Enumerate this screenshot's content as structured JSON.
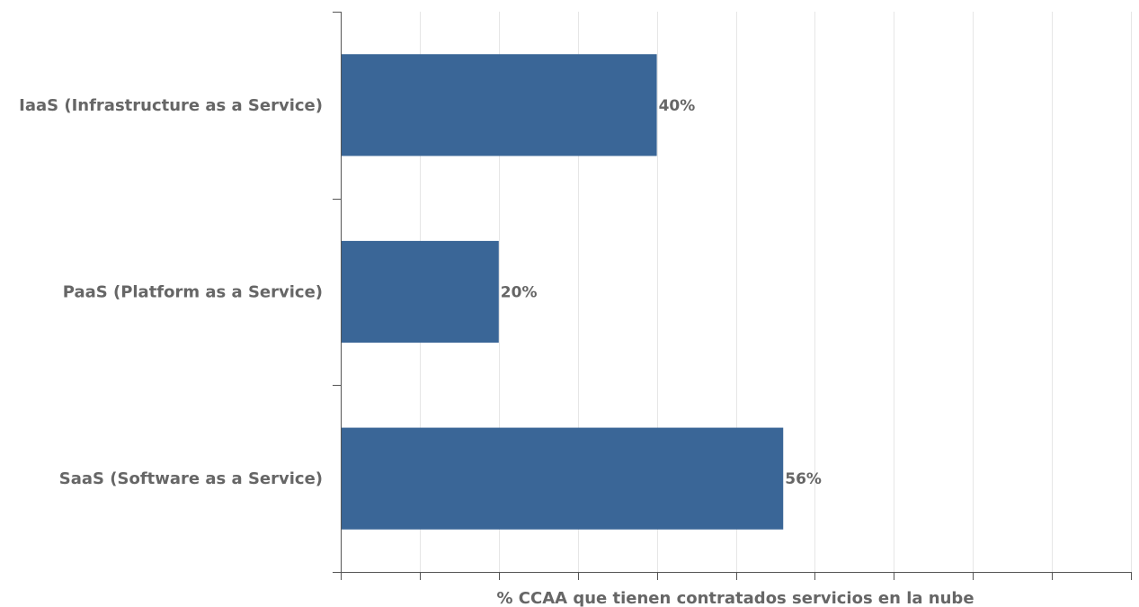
{
  "chart_data": {
    "type": "bar",
    "orientation": "horizontal",
    "categories": [
      "IaaS (Infrastructure as a Service)",
      "PaaS (Platform as a Service)",
      "SaaS (Software as a Service)"
    ],
    "values": [
      40,
      20,
      56
    ],
    "data_labels": [
      "40%",
      "20%",
      "56%"
    ],
    "xlabel": "% CCAA que tienen contratados servicios en la nube",
    "ylabel": "",
    "title": "",
    "xlim": [
      0,
      100
    ],
    "x_ticks": [
      0,
      10,
      20,
      30,
      40,
      50,
      60,
      70,
      80,
      90,
      100
    ],
    "x_tick_labels_shown": false,
    "grid": "vertical",
    "legend": "none",
    "bar_color": "#3a6697",
    "label_color": "#666666",
    "grid_color": "#e6e6e6",
    "axis_color": "#555555"
  }
}
